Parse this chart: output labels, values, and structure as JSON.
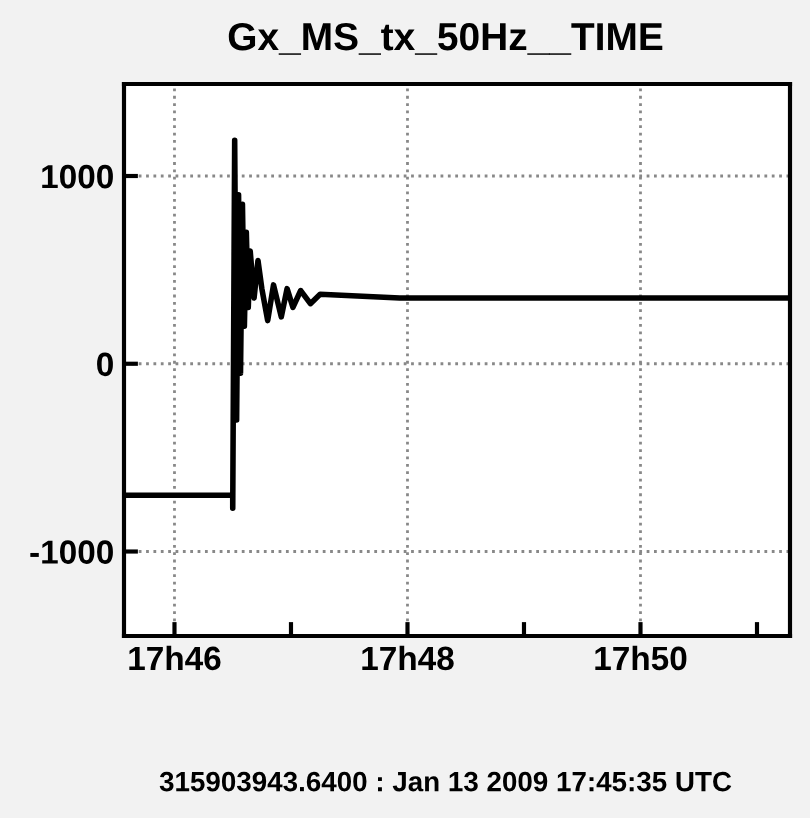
{
  "chart_data": {
    "type": "line",
    "title": "Gx_MS_tx_50Hz__TIME",
    "x": [
      "2009-01-13T17:45:34",
      "2009-01-13T17:46:30",
      "2009-01-13T17:46:30",
      "2009-01-13T17:46:31",
      "2009-01-13T17:46:32",
      "2009-01-13T17:46:33",
      "2009-01-13T17:46:34",
      "2009-01-13T17:46:35",
      "2009-01-13T17:46:36",
      "2009-01-13T17:46:37",
      "2009-01-13T17:46:38",
      "2009-01-13T17:46:39",
      "2009-01-13T17:46:41",
      "2009-01-13T17:46:43",
      "2009-01-13T17:46:45",
      "2009-01-13T17:46:48",
      "2009-01-13T17:46:51",
      "2009-01-13T17:46:55",
      "2009-01-13T17:46:58",
      "2009-01-13T17:47:01",
      "2009-01-13T17:47:05",
      "2009-01-13T17:47:10",
      "2009-01-13T17:47:15",
      "2009-01-13T17:47:56",
      "2009-01-13T17:48:48",
      "2009-01-13T17:49:39",
      "2009-01-13T17:50:31",
      "2009-01-13T17:51:17"
    ],
    "series": [
      {
        "color": "#000000",
        "values": [
          -700,
          -700,
          -770,
          1190,
          -300,
          900,
          -50,
          850,
          200,
          700,
          300,
          600,
          350,
          550,
          400,
          230,
          420,
          250,
          400,
          300,
          390,
          320,
          370,
          350,
          350,
          350,
          350,
          350
        ]
      }
    ],
    "xlim": [
      "2009-01-13T17:45:34",
      "2009-01-13T17:51:17"
    ],
    "ylim": [
      -1450,
      1490
    ],
    "xticks": [
      {
        "value": "2009-01-13T17:46",
        "label": "17h46"
      },
      {
        "value": "2009-01-13T17:47",
        "label": null
      },
      {
        "value": "2009-01-13T17:48",
        "label": "17h48"
      },
      {
        "value": "2009-01-13T17:49",
        "label": null
      },
      {
        "value": "2009-01-13T17:50",
        "label": "17h50"
      },
      {
        "value": "2009-01-13T17:51",
        "label": null
      }
    ],
    "yticks": [
      -1000,
      0,
      1000
    ],
    "grid": true,
    "marker": "none",
    "line_style": "solid",
    "annotations": [
      "315903943.6400 : Jan 13 2009 17:45:35 UTC"
    ]
  }
}
